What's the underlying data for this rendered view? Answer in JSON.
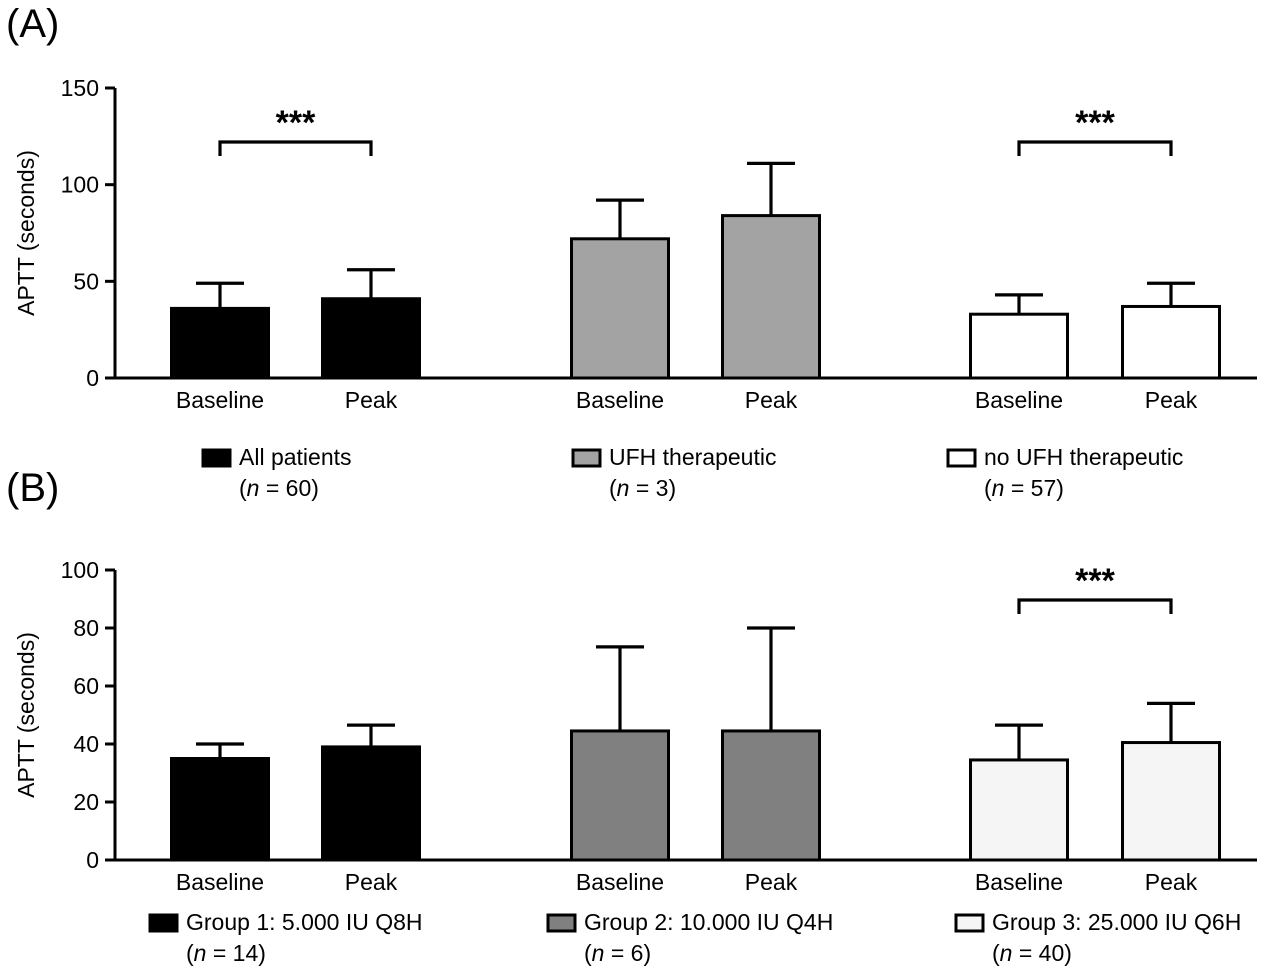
{
  "figure": {
    "background": "#ffffff",
    "text_color": "#000000",
    "axis_color": "#000000"
  },
  "chart_data": [
    {
      "type": "bar",
      "panel_label": "(A)",
      "ylabel": "APTT (seconds)",
      "ylim": [
        0,
        150
      ],
      "yticks": [
        0,
        50,
        100,
        150
      ],
      "categories": [
        "Baseline",
        "Peak"
      ],
      "grid": false,
      "legend_position": "bottom",
      "bar_outline": "#000000",
      "error_bars": "upper only",
      "series": [
        {
          "name": "All patients",
          "n_label": "(n = 60)",
          "fill": "#000000",
          "values": [
            36,
            41
          ],
          "errors_upper": [
            13,
            15
          ],
          "significance": "***"
        },
        {
          "name": "UFH therapeutic",
          "n_label": "(n = 3)",
          "fill": "#a3a3a3",
          "values": [
            72,
            84
          ],
          "errors_upper": [
            20,
            27
          ],
          "significance": null
        },
        {
          "name": "no UFH therapeutic",
          "n_label": "(n = 57)",
          "fill": "#ffffff",
          "values": [
            33,
            37
          ],
          "errors_upper": [
            10,
            12
          ],
          "significance": "***"
        }
      ]
    },
    {
      "type": "bar",
      "panel_label": "(B)",
      "ylabel": "APTT (seconds)",
      "ylim": [
        0,
        100
      ],
      "yticks": [
        0,
        20,
        40,
        60,
        80,
        100
      ],
      "categories": [
        "Baseline",
        "Peak"
      ],
      "grid": false,
      "legend_position": "bottom",
      "bar_outline": "#000000",
      "error_bars": "upper only",
      "series": [
        {
          "name": "Group 1: 5.000 IU Q8H",
          "n_label": "(n = 14)",
          "fill": "#000000",
          "values": [
            35,
            39
          ],
          "errors_upper": [
            5,
            7.5
          ],
          "significance": null
        },
        {
          "name": "Group 2: 10.000 IU Q4H",
          "n_label": "(n = 6)",
          "fill": "#808080",
          "values": [
            44.5,
            44.5
          ],
          "errors_upper": [
            29,
            35.5
          ],
          "significance": null
        },
        {
          "name": "Group 3: 25.000 IU Q6H",
          "n_label": "(n = 40)",
          "fill": "#f5f5f5",
          "values": [
            34.5,
            40.5
          ],
          "errors_upper": [
            12,
            13.5
          ],
          "significance": "***"
        }
      ]
    }
  ]
}
